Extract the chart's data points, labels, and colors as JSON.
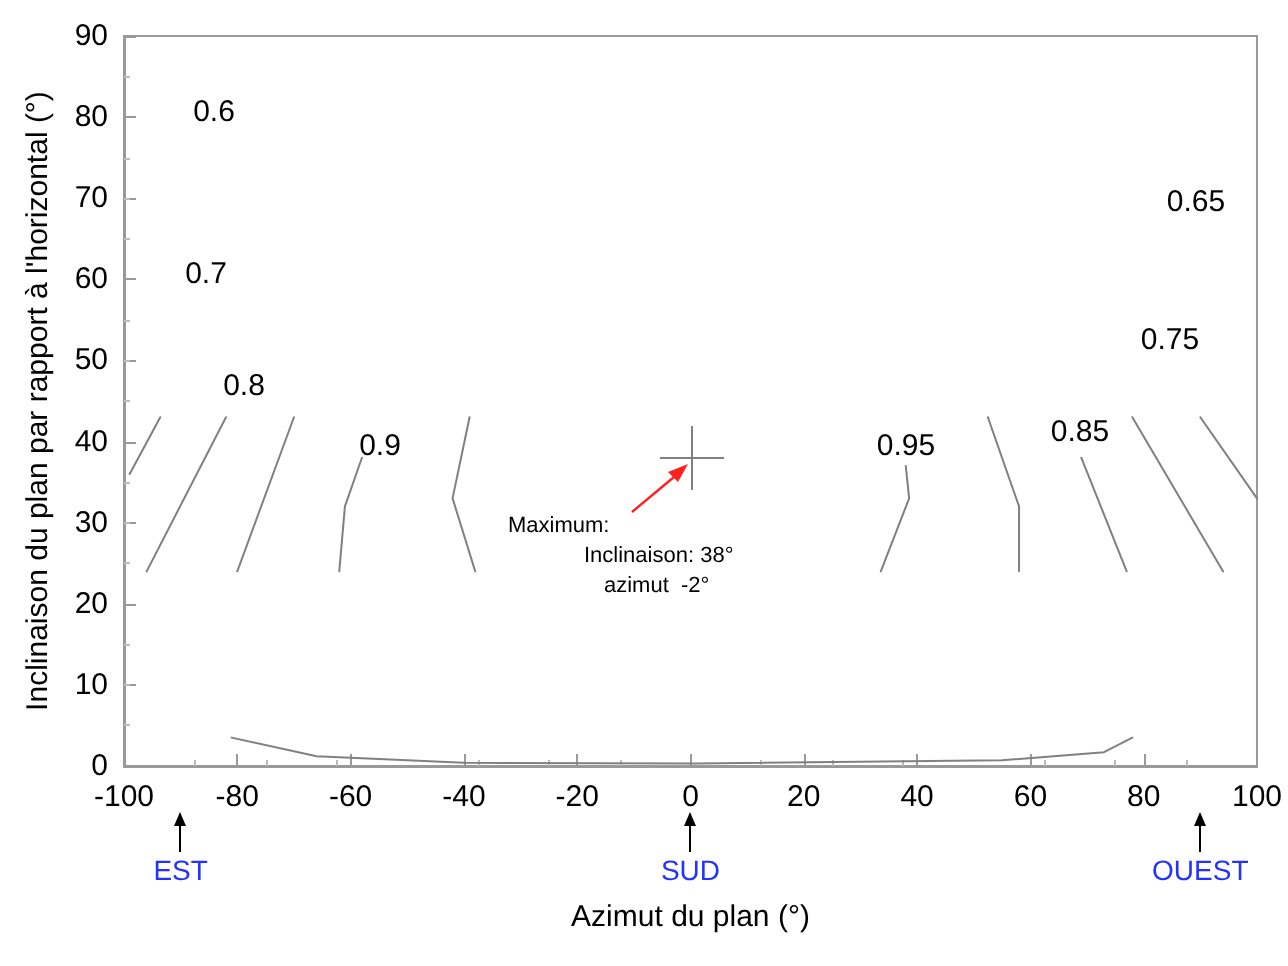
{
  "chart_data": {
    "type": "line",
    "xlabel": "Azimut du plan (°)",
    "ylabel": "Inclinaison du plan par rapport à l'horizontal (°)",
    "xlim": [
      -100,
      100
    ],
    "xticks": [
      -100,
      -80,
      -60,
      -40,
      -20,
      0,
      20,
      40,
      60,
      80,
      100
    ],
    "ylim": [
      0,
      90
    ],
    "yticks": [
      0,
      10,
      20,
      30,
      40,
      50,
      60,
      70,
      80,
      90
    ],
    "grid": false,
    "marker": "none",
    "line_style": "solid",
    "series": [
      {
        "color": "#808080",
        "x": [
          -93.6,
          -99
        ],
        "values": [
          43,
          36
        ]
      },
      {
        "color": "#808080",
        "x": [
          -82,
          -96
        ],
        "values": [
          43,
          24
        ]
      },
      {
        "color": "#808080",
        "x": [
          -70,
          -80
        ],
        "values": [
          43,
          24
        ]
      },
      {
        "color": "#808080",
        "x": [
          -58,
          -61,
          -62
        ],
        "values": [
          38,
          32,
          24
        ]
      },
      {
        "color": "#808080",
        "x": [
          -39,
          -42,
          -38
        ],
        "values": [
          43,
          33,
          24
        ]
      },
      {
        "color": "#808080",
        "x": [
          38,
          38.6,
          33.6
        ],
        "values": [
          37,
          33,
          24
        ]
      },
      {
        "color": "#808080",
        "x": [
          52.5,
          58,
          58
        ],
        "values": [
          43,
          32,
          24
        ]
      },
      {
        "color": "#808080",
        "x": [
          69,
          77
        ],
        "values": [
          38,
          24
        ]
      },
      {
        "color": "#808080",
        "x": [
          78,
          94
        ],
        "values": [
          43,
          24
        ]
      },
      {
        "color": "#808080",
        "x": [
          90,
          100
        ],
        "values": [
          43,
          33
        ]
      },
      {
        "color": "#808080",
        "x": [
          -81,
          -66,
          -40,
          1,
          55,
          73,
          78
        ],
        "values": [
          3.5,
          1.2,
          0.4,
          0.3,
          0.7,
          1.7,
          3.5
        ]
      }
    ],
    "annotations": [
      "0.6",
      "0.7",
      "0.8",
      "0.9",
      "0.95",
      "0.85",
      "0.65",
      "0.75",
      "Maximum:\nInclinaison: 38°\nazimut  -2°",
      "EST",
      "SUD",
      "OUEST"
    ]
  }
}
